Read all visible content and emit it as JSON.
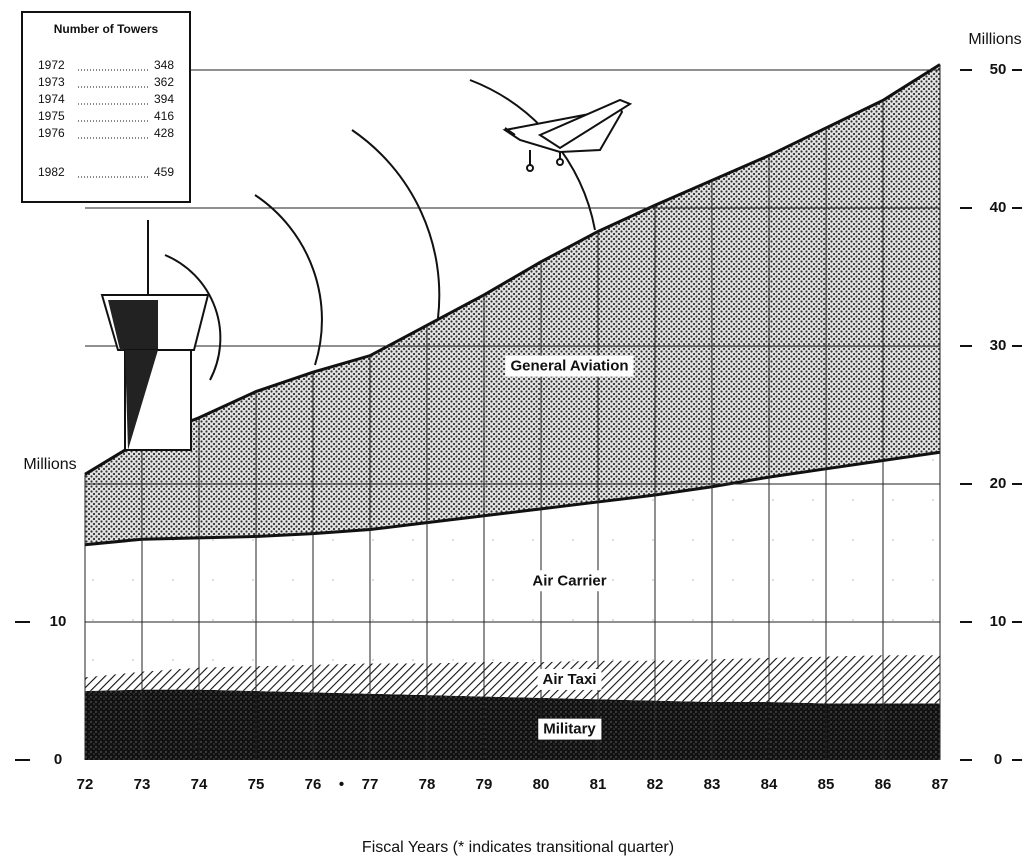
{
  "chart_data": {
    "type": "stacked-area",
    "x_label": "Fiscal Years (* indicates transitional quarter)",
    "y_label": "Millions",
    "y2_label": "Millions",
    "x": [
      72,
      73,
      74,
      75,
      76,
      77,
      78,
      79,
      80,
      81,
      82,
      83,
      84,
      85,
      86,
      87
    ],
    "xlim": [
      72,
      87
    ],
    "xticks": [
      72,
      73,
      74,
      75,
      76,
      {
        "value": 76.5,
        "label": "•"
      },
      77,
      78,
      79,
      80,
      81,
      82,
      83,
      84,
      85,
      86,
      87
    ],
    "ylim": [
      0,
      50
    ],
    "yticks": [
      0,
      10
    ],
    "y2lim": [
      0,
      50
    ],
    "y2ticks": [
      0,
      10,
      20,
      30,
      40,
      50
    ],
    "grid": true,
    "series": [
      {
        "name": "Military",
        "color": "#1a1a1a",
        "values": [
          5.0,
          5.1,
          5.1,
          5.0,
          4.9,
          4.8,
          4.7,
          4.6,
          4.5,
          4.4,
          4.3,
          4.2,
          4.2,
          4.1,
          4.1,
          4.1
        ]
      },
      {
        "name": "Air Taxi",
        "color": "#d8d8d8",
        "values": [
          1.0,
          1.3,
          1.6,
          1.8,
          2.0,
          2.2,
          2.3,
          2.5,
          2.6,
          2.8,
          2.9,
          3.1,
          3.2,
          3.4,
          3.5,
          3.5
        ]
      },
      {
        "name": "Air Carrier",
        "color": "#ffffff",
        "values": [
          9.6,
          9.6,
          9.4,
          9.4,
          9.5,
          9.7,
          10.2,
          10.6,
          11.1,
          11.5,
          12.0,
          12.5,
          13.1,
          13.6,
          14.1,
          14.7
        ]
      },
      {
        "name": "General Aviation",
        "color": "#c8c8c8",
        "values": [
          5.1,
          7.2,
          8.7,
          10.5,
          11.7,
          12.6,
          14.3,
          16.0,
          17.9,
          19.6,
          21.0,
          22.2,
          23.3,
          24.7,
          26.1,
          28.1
        ]
      }
    ],
    "inset": {
      "title": "Number of Towers",
      "rows": [
        [
          "1972",
          348
        ],
        [
          "1973",
          362
        ],
        [
          "1974",
          394
        ],
        [
          "1975",
          416
        ],
        [
          "1976",
          428
        ],
        [
          "1982",
          459
        ]
      ]
    }
  }
}
